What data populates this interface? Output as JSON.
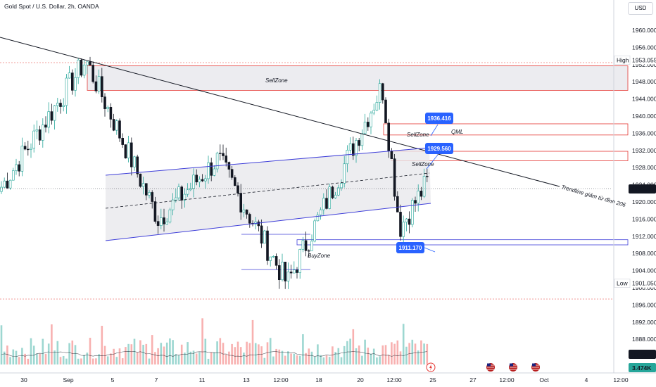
{
  "title": "Gold Spot / U.S. Dollar, 2h, OANDA",
  "currency": "USD",
  "colors": {
    "up": "#26a69a",
    "down": "#131722",
    "zone_red": "#e53935",
    "channel_blue": "#3f3fd9",
    "badge_blue": "#2962ff",
    "zone_fill": "#ececf0",
    "volume_up": "#26a69a",
    "volume_down": "#ef5350"
  },
  "chart_data": {
    "type": "candlestick",
    "y_axis": {
      "min": 1880,
      "max": 1964,
      "ticks": [
        "1960.000",
        "1956.000",
        "1952.000",
        "1948.000",
        "1944.000",
        "1940.000",
        "1936.000",
        "1932.000",
        "1928.000",
        "1924.000",
        "1920.000",
        "1916.000",
        "1912.000",
        "1908.000",
        "1904.000",
        "1900.000",
        "1896.000",
        "1892.000",
        "1888.000"
      ]
    },
    "x_axis": {
      "ticks": [
        "30",
        "Sep",
        "5",
        "7",
        "11",
        "13",
        "12:00",
        "18",
        "20",
        "12:00",
        "25",
        "27",
        "12:00",
        "Oct",
        "4",
        "12:00"
      ]
    },
    "price_markers": [
      {
        "label": "High",
        "value": "1953.055"
      },
      {
        "label": "Low",
        "value": "1901.050"
      }
    ],
    "last_price": "1925.430",
    "volume_label": "11.43K",
    "volume_ma_label": "3.474K",
    "key_points": [
      {
        "label": "start",
        "value": 1923.0
      },
      {
        "label": "Sep high",
        "value": 1953.0
      },
      {
        "label": "Sep 6 low",
        "value": 1916.0
      },
      {
        "label": "Sep 12 peak",
        "value": 1930.0
      },
      {
        "label": "Sep 14 low",
        "value": 1901.0
      },
      {
        "label": "Sep 20 high",
        "value": 1947.0
      },
      {
        "label": "Sep 21 low",
        "value": 1914.0
      },
      {
        "label": "last",
        "value": 1925.43
      }
    ],
    "zones": [
      {
        "label": "SellZone",
        "from": 1946.0,
        "to": 1951.7
      },
      {
        "label": "SellZone",
        "from": 1929.6,
        "to": 1931.8
      },
      {
        "label": "",
        "from": 1935.6,
        "to": 1938.2
      },
      {
        "label": "BuyZone",
        "from": 1910.0,
        "to": 1911.2
      }
    ],
    "annotations": [
      {
        "text": "SellZone"
      },
      {
        "text": "SellZone"
      },
      {
        "text": "SellZone"
      },
      {
        "text": "QML"
      },
      {
        "text": "BuyZone"
      },
      {
        "text": "Trendline giảm từ đỉnh 206"
      }
    ],
    "badges": [
      "1936.416",
      "1929.560",
      "1911.170"
    ],
    "event_icons": [
      "flag-usa-icon",
      "flag-usa-icon",
      "flag-usa-icon",
      "lightning-icon"
    ]
  }
}
